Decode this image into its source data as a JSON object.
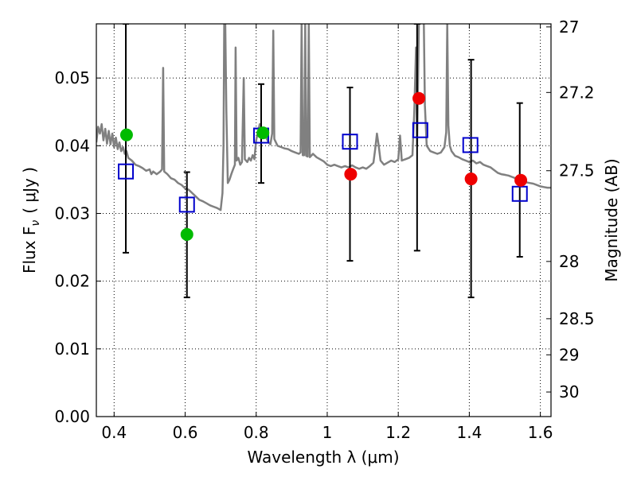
{
  "chart_data": {
    "type": "scatter",
    "xlabel": "Wavelength  λ (μm)",
    "ylabel_left": "Flux  F",
    "ylabel_left_sub": "ν",
    "ylabel_left_unit": "( μJy )",
    "ylabel_right": "Magnitude (AB)",
    "xlim": [
      0.35,
      1.63
    ],
    "ylim": [
      0.0,
      0.058
    ],
    "grid": true,
    "x_ticks": [
      {
        "value": 0.4,
        "label": "0.4"
      },
      {
        "value": 0.6,
        "label": "0.6"
      },
      {
        "value": 0.8,
        "label": "0.8"
      },
      {
        "value": 1.0,
        "label": "1"
      },
      {
        "value": 1.2,
        "label": "1.2"
      },
      {
        "value": 1.4,
        "label": "1.4"
      },
      {
        "value": 1.6,
        "label": "1.6"
      }
    ],
    "y_ticks": [
      {
        "value": 0.0,
        "label": "0.00"
      },
      {
        "value": 0.01,
        "label": "0.01"
      },
      {
        "value": 0.02,
        "label": "0.02"
      },
      {
        "value": 0.03,
        "label": "0.03"
      },
      {
        "value": 0.04,
        "label": "0.04"
      },
      {
        "value": 0.05,
        "label": "0.05"
      }
    ],
    "right_ticks": [
      {
        "mag": 27,
        "label": "27"
      },
      {
        "mag": 27.2,
        "label": "27.2"
      },
      {
        "mag": 27.5,
        "label": "27.5"
      },
      {
        "mag": 28,
        "label": "28"
      },
      {
        "mag": 28.5,
        "label": "28.5"
      },
      {
        "mag": 29,
        "label": "29"
      },
      {
        "mag": 30,
        "label": "30"
      }
    ],
    "series": [
      {
        "name": "model-spectrum",
        "kind": "line",
        "color": "#808080",
        "points": [
          [
            0.35,
            0.0405
          ],
          [
            0.355,
            0.0428
          ],
          [
            0.36,
            0.0418
          ],
          [
            0.365,
            0.0432
          ],
          [
            0.37,
            0.0408
          ],
          [
            0.375,
            0.0425
          ],
          [
            0.38,
            0.0403
          ],
          [
            0.385,
            0.0422
          ],
          [
            0.39,
            0.0402
          ],
          [
            0.395,
            0.0418
          ],
          [
            0.4,
            0.0398
          ],
          [
            0.405,
            0.0412
          ],
          [
            0.41,
            0.0395
          ],
          [
            0.415,
            0.0405
          ],
          [
            0.42,
            0.0392
          ],
          [
            0.425,
            0.0398
          ],
          [
            0.43,
            0.0388
          ],
          [
            0.435,
            0.0392
          ],
          [
            0.44,
            0.0382
          ],
          [
            0.45,
            0.0378
          ],
          [
            0.46,
            0.0372
          ],
          [
            0.47,
            0.037
          ],
          [
            0.48,
            0.0367
          ],
          [
            0.49,
            0.0363
          ],
          [
            0.5,
            0.0365
          ],
          [
            0.505,
            0.0358
          ],
          [
            0.51,
            0.0362
          ],
          [
            0.52,
            0.0358
          ],
          [
            0.53,
            0.0362
          ],
          [
            0.535,
            0.0365
          ],
          [
            0.538,
            0.0515
          ],
          [
            0.541,
            0.0362
          ],
          [
            0.55,
            0.0358
          ],
          [
            0.56,
            0.0352
          ],
          [
            0.57,
            0.035
          ],
          [
            0.58,
            0.0345
          ],
          [
            0.59,
            0.0342
          ],
          [
            0.6,
            0.0337
          ],
          [
            0.61,
            0.0335
          ],
          [
            0.62,
            0.033
          ],
          [
            0.63,
            0.0325
          ],
          [
            0.64,
            0.032
          ],
          [
            0.65,
            0.0318
          ],
          [
            0.66,
            0.0315
          ],
          [
            0.67,
            0.0312
          ],
          [
            0.68,
            0.031
          ],
          [
            0.69,
            0.0308
          ],
          [
            0.7,
            0.0305
          ],
          [
            0.705,
            0.033
          ],
          [
            0.708,
            0.04
          ],
          [
            0.71,
            0.058
          ],
          [
            0.713,
            0.058
          ],
          [
            0.716,
            0.045
          ],
          [
            0.72,
            0.0345
          ],
          [
            0.725,
            0.035
          ],
          [
            0.73,
            0.0358
          ],
          [
            0.735,
            0.0365
          ],
          [
            0.74,
            0.0372
          ],
          [
            0.742,
            0.0545
          ],
          [
            0.745,
            0.0378
          ],
          [
            0.75,
            0.0382
          ],
          [
            0.755,
            0.0372
          ],
          [
            0.76,
            0.0376
          ],
          [
            0.765,
            0.05
          ],
          [
            0.768,
            0.038
          ],
          [
            0.775,
            0.0376
          ],
          [
            0.78,
            0.0382
          ],
          [
            0.785,
            0.0378
          ],
          [
            0.79,
            0.0386
          ],
          [
            0.795,
            0.038
          ],
          [
            0.8,
            0.0408
          ],
          [
            0.805,
            0.042
          ],
          [
            0.81,
            0.0432
          ],
          [
            0.815,
            0.0425
          ],
          [
            0.82,
            0.0422
          ],
          [
            0.825,
            0.0415
          ],
          [
            0.83,
            0.041
          ],
          [
            0.835,
            0.0405
          ],
          [
            0.84,
            0.0402
          ],
          [
            0.845,
            0.0418
          ],
          [
            0.848,
            0.057
          ],
          [
            0.851,
            0.041
          ],
          [
            0.86,
            0.04
          ],
          [
            0.87,
            0.0398
          ],
          [
            0.88,
            0.0396
          ],
          [
            0.89,
            0.0395
          ],
          [
            0.9,
            0.0392
          ],
          [
            0.91,
            0.039
          ],
          [
            0.92,
            0.0388
          ],
          [
            0.925,
            0.039
          ],
          [
            0.928,
            0.058
          ],
          [
            0.931,
            0.0386
          ],
          [
            0.935,
            0.0386
          ],
          [
            0.938,
            0.058
          ],
          [
            0.941,
            0.0385
          ],
          [
            0.945,
            0.0384
          ],
          [
            0.948,
            0.058
          ],
          [
            0.951,
            0.0383
          ],
          [
            0.96,
            0.0388
          ],
          [
            0.97,
            0.0383
          ],
          [
            0.98,
            0.038
          ],
          [
            0.99,
            0.0377
          ],
          [
            1.0,
            0.0372
          ],
          [
            1.01,
            0.037
          ],
          [
            1.02,
            0.0372
          ],
          [
            1.03,
            0.037
          ],
          [
            1.04,
            0.0368
          ],
          [
            1.05,
            0.037
          ],
          [
            1.06,
            0.0368
          ],
          [
            1.07,
            0.0371
          ],
          [
            1.08,
            0.0368
          ],
          [
            1.09,
            0.0366
          ],
          [
            1.1,
            0.0368
          ],
          [
            1.11,
            0.0366
          ],
          [
            1.12,
            0.037
          ],
          [
            1.13,
            0.0375
          ],
          [
            1.135,
            0.0395
          ],
          [
            1.14,
            0.0418
          ],
          [
            1.145,
            0.04
          ],
          [
            1.15,
            0.0378
          ],
          [
            1.16,
            0.0372
          ],
          [
            1.17,
            0.0375
          ],
          [
            1.18,
            0.0378
          ],
          [
            1.19,
            0.0376
          ],
          [
            1.2,
            0.038
          ],
          [
            1.205,
            0.0415
          ],
          [
            1.21,
            0.0378
          ],
          [
            1.22,
            0.038
          ],
          [
            1.23,
            0.0382
          ],
          [
            1.24,
            0.0386
          ],
          [
            1.245,
            0.045
          ],
          [
            1.25,
            0.0545
          ],
          [
            1.253,
            0.04
          ],
          [
            1.258,
            0.058
          ],
          [
            1.261,
            0.058
          ],
          [
            1.265,
            0.06
          ],
          [
            1.268,
            0.06
          ],
          [
            1.272,
            0.058
          ],
          [
            1.275,
            0.046
          ],
          [
            1.28,
            0.04
          ],
          [
            1.29,
            0.0392
          ],
          [
            1.3,
            0.039
          ],
          [
            1.31,
            0.0388
          ],
          [
            1.32,
            0.039
          ],
          [
            1.33,
            0.0398
          ],
          [
            1.335,
            0.042
          ],
          [
            1.338,
            0.058
          ],
          [
            1.341,
            0.043
          ],
          [
            1.345,
            0.04
          ],
          [
            1.35,
            0.0392
          ],
          [
            1.36,
            0.0385
          ],
          [
            1.37,
            0.0383
          ],
          [
            1.38,
            0.038
          ],
          [
            1.39,
            0.0378
          ],
          [
            1.4,
            0.0376
          ],
          [
            1.41,
            0.0378
          ],
          [
            1.42,
            0.0374
          ],
          [
            1.43,
            0.0376
          ],
          [
            1.44,
            0.0372
          ],
          [
            1.45,
            0.037
          ],
          [
            1.46,
            0.0368
          ],
          [
            1.47,
            0.0364
          ],
          [
            1.48,
            0.036
          ],
          [
            1.49,
            0.0358
          ],
          [
            1.5,
            0.0357
          ],
          [
            1.51,
            0.0356
          ],
          [
            1.52,
            0.0354
          ],
          [
            1.53,
            0.0352
          ],
          [
            1.54,
            0.035
          ],
          [
            1.55,
            0.0348
          ],
          [
            1.56,
            0.0346
          ],
          [
            1.57,
            0.0345
          ],
          [
            1.58,
            0.0344
          ],
          [
            1.59,
            0.0342
          ],
          [
            1.6,
            0.034
          ],
          [
            1.61,
            0.0339
          ],
          [
            1.62,
            0.0338
          ],
          [
            1.63,
            0.0338
          ]
        ]
      },
      {
        "name": "observed-flux-errorbars",
        "kind": "errorbar",
        "color": "#000000",
        "points": [
          {
            "x": 0.433,
            "low": 0.0242,
            "high": 0.058
          },
          {
            "x": 0.605,
            "low": 0.0176,
            "high": 0.0361
          },
          {
            "x": 0.814,
            "low": 0.0345,
            "high": 0.0491
          },
          {
            "x": 1.064,
            "low": 0.023,
            "high": 0.0486
          },
          {
            "x": 1.253,
            "low": 0.0245,
            "high": 0.058
          },
          {
            "x": 1.405,
            "low": 0.0176,
            "high": 0.0527
          },
          {
            "x": 1.542,
            "low": 0.0236,
            "high": 0.0463
          }
        ]
      },
      {
        "name": "model-synthetic-photometry",
        "kind": "open-square",
        "color": "#0000cc",
        "points": [
          [
            0.433,
            0.0362
          ],
          [
            0.605,
            0.0313
          ],
          [
            0.814,
            0.0415
          ],
          [
            1.064,
            0.0406
          ],
          [
            1.262,
            0.0423
          ],
          [
            1.403,
            0.0401
          ],
          [
            1.542,
            0.0329
          ]
        ]
      },
      {
        "name": "observed-flux-green",
        "kind": "filled-circle",
        "color": "#00bb00",
        "points": [
          [
            0.435,
            0.0416
          ],
          [
            0.605,
            0.0269
          ],
          [
            0.819,
            0.0419
          ]
        ]
      },
      {
        "name": "observed-flux-red",
        "kind": "filled-circle",
        "color": "#ee0000",
        "points": [
          [
            1.066,
            0.0358
          ],
          [
            1.258,
            0.047
          ],
          [
            1.405,
            0.0351
          ],
          [
            1.545,
            0.0349
          ]
        ]
      }
    ]
  }
}
